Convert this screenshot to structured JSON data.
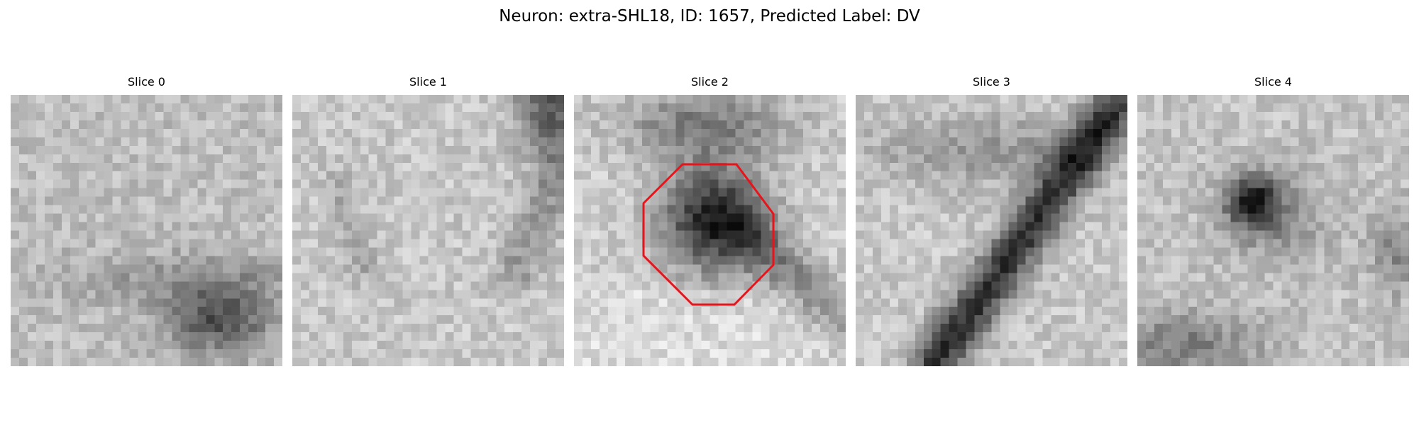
{
  "figure": {
    "title": "Neuron: extra-SHL18, ID: 1657, Predicted Label: DV"
  },
  "panels": [
    {
      "title": "Slice 0",
      "has_roi": false
    },
    {
      "title": "Slice 1",
      "has_roi": false
    },
    {
      "title": "Slice 2",
      "has_roi": true
    },
    {
      "title": "Slice 3",
      "has_roi": false
    },
    {
      "title": "Slice 4",
      "has_roi": false
    }
  ],
  "colors": {
    "roi": "#e8141c",
    "background": "#ffffff",
    "text": "#000000"
  }
}
